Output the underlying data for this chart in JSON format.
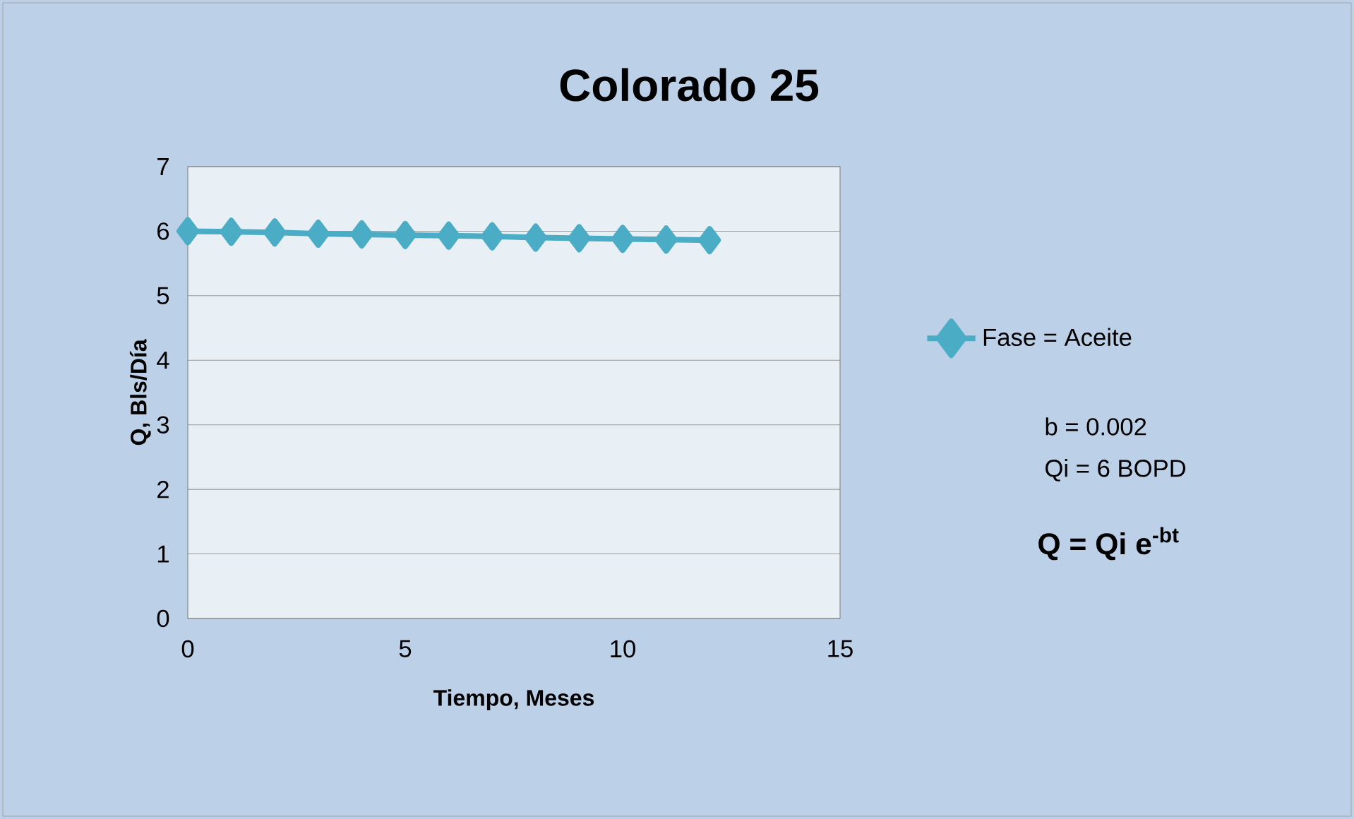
{
  "chart_data": {
    "type": "line",
    "title": "Colorado 25",
    "xlabel": "Tiempo, Meses",
    "ylabel": "Q, Bls/Día",
    "x": [
      0,
      1,
      2,
      3,
      4,
      5,
      6,
      7,
      8,
      9,
      10,
      11,
      12
    ],
    "series": [
      {
        "name": "Fase = Aceite",
        "color": "#4bacc6",
        "values": [
          6.0,
          5.99,
          5.98,
          5.96,
          5.95,
          5.94,
          5.93,
          5.92,
          5.9,
          5.89,
          5.88,
          5.87,
          5.86
        ]
      }
    ],
    "xlim": [
      0,
      15
    ],
    "xticks": [
      0,
      5,
      10,
      15
    ],
    "ylim": [
      0,
      7
    ],
    "yticks": [
      0,
      1,
      2,
      3,
      4,
      5,
      6,
      7
    ],
    "grid": "y",
    "legend": "right",
    "marker": "diamond",
    "line_style": "solid",
    "annotations": [
      "b = 0.002",
      "Qi = 6 BOPD",
      "Q = Qi e$^{-bt}$"
    ]
  }
}
